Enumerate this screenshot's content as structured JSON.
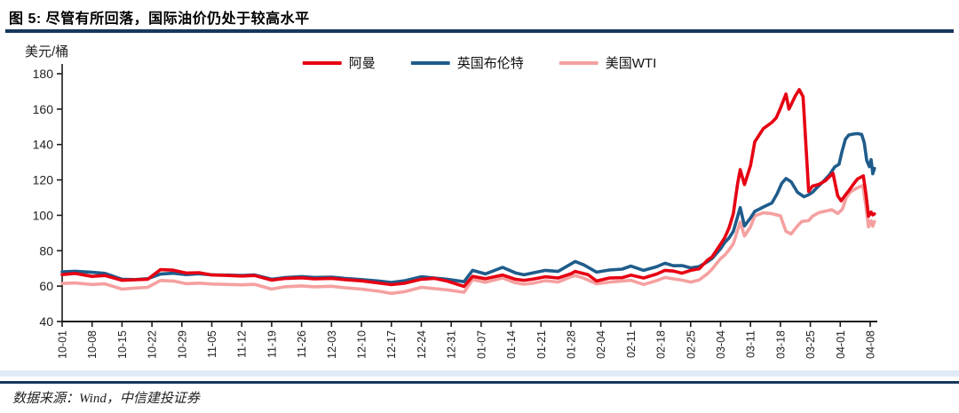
{
  "figure": {
    "title": "图 5: 尽管有所回落，国际油价仍处于较高水平",
    "y_unit": "美元/桶",
    "source": "数据来源：Wind，中信建投证券"
  },
  "colors": {
    "oman": "#e60012",
    "brent": "#1f5c8b",
    "wti": "#f5a0a0",
    "title_rule": "#17375e",
    "axis": "#1a1a1a",
    "tick_text": "#222222"
  },
  "chart_data": {
    "type": "line",
    "title": "图 5: 尽管有所回落，国际油价仍处于较高水平",
    "ylabel": "美元/桶",
    "xlabel": "",
    "ylim": [
      40,
      180
    ],
    "y_ticks": [
      40,
      60,
      80,
      100,
      120,
      140,
      160,
      180
    ],
    "x_tick_labels": [
      "10-01",
      "10-08",
      "10-15",
      "10-22",
      "10-29",
      "11-05",
      "11-12",
      "11-19",
      "11-26",
      "12-03",
      "12-10",
      "12-17",
      "12-24",
      "12-31",
      "01-07",
      "01-14",
      "01-21",
      "01-28",
      "02-04",
      "02-11",
      "02-18",
      "02-25",
      "03-04",
      "03-11",
      "03-18",
      "03-25",
      "04-01",
      "04-08"
    ],
    "x_units": "day offset from 10-01 (weekly ticks every 7 days, 04-08 = day 189)",
    "grid": false,
    "legend_position": "top",
    "series": [
      {
        "name": "阿曼",
        "color_key": "oman",
        "points": [
          [
            0,
            66.5
          ],
          [
            3,
            67.2
          ],
          [
            7,
            65.5
          ],
          [
            10,
            66.0
          ],
          [
            14,
            63.3
          ],
          [
            17,
            63.6
          ],
          [
            20,
            63.9
          ],
          [
            23,
            69.3
          ],
          [
            26,
            69.0
          ],
          [
            29,
            67.4
          ],
          [
            32,
            67.6
          ],
          [
            35,
            66.3
          ],
          [
            39,
            66.0
          ],
          [
            42,
            65.7
          ],
          [
            45,
            66.0
          ],
          [
            49,
            63.4
          ],
          [
            52,
            64.3
          ],
          [
            56,
            64.7
          ],
          [
            59,
            64.1
          ],
          [
            63,
            64.4
          ],
          [
            66,
            63.7
          ],
          [
            70,
            63.0
          ],
          [
            74,
            61.8
          ],
          [
            77,
            60.8
          ],
          [
            80,
            61.6
          ],
          [
            84,
            63.9
          ],
          [
            87,
            64.4
          ],
          [
            90,
            62.9
          ],
          [
            94,
            59.8
          ],
          [
            96,
            65.5
          ],
          [
            99,
            64.2
          ],
          [
            103,
            66.3
          ],
          [
            106,
            63.9
          ],
          [
            108,
            63.3
          ],
          [
            110,
            63.9
          ],
          [
            113,
            65.3
          ],
          [
            116,
            64.6
          ],
          [
            119,
            67.0
          ],
          [
            120,
            68.3
          ],
          [
            123,
            66.5
          ],
          [
            125,
            62.9
          ],
          [
            128,
            64.6
          ],
          [
            131,
            64.8
          ],
          [
            133,
            66.2
          ],
          [
            136,
            64.6
          ],
          [
            139,
            66.8
          ],
          [
            141,
            68.9
          ],
          [
            143,
            68.5
          ],
          [
            145,
            67.3
          ],
          [
            147,
            68.9
          ],
          [
            149,
            69.8
          ],
          [
            151,
            74.8
          ],
          [
            152,
            76.5
          ],
          [
            154,
            83.7
          ],
          [
            155,
            87.5
          ],
          [
            156,
            93.0
          ],
          [
            157,
            101.0
          ],
          [
            158,
            118.0
          ],
          [
            158.6,
            125.8
          ],
          [
            159.6,
            117.4
          ],
          [
            161,
            128.0
          ],
          [
            162,
            141.5
          ],
          [
            164,
            149.0
          ],
          [
            166,
            152.5
          ],
          [
            167,
            155.0
          ],
          [
            168,
            160.5
          ],
          [
            169.3,
            168.5
          ],
          [
            170,
            160.0
          ],
          [
            171.5,
            167.5
          ],
          [
            172.4,
            171.0
          ],
          [
            173.3,
            167.0
          ],
          [
            174,
            138.0
          ],
          [
            174.6,
            113.5
          ],
          [
            175.5,
            116.5
          ],
          [
            177,
            117.5
          ],
          [
            178.5,
            119.5
          ],
          [
            180.3,
            123.8
          ],
          [
            181.4,
            111.0
          ],
          [
            182.2,
            108.2
          ],
          [
            183.2,
            111.5
          ],
          [
            184,
            113.9
          ],
          [
            185.2,
            118.0
          ],
          [
            186,
            120.5
          ],
          [
            187.4,
            122.3
          ],
          [
            188,
            112.0
          ],
          [
            188.6,
            99.5
          ],
          [
            189.2,
            101.8
          ],
          [
            189.6,
            100.2
          ],
          [
            190,
            100.8
          ]
        ]
      },
      {
        "name": "英国布伦特",
        "color_key": "brent",
        "points": [
          [
            0,
            68.1
          ],
          [
            3,
            68.4
          ],
          [
            7,
            67.8
          ],
          [
            10,
            67.2
          ],
          [
            14,
            63.9
          ],
          [
            17,
            63.7
          ],
          [
            20,
            64.2
          ],
          [
            23,
            66.8
          ],
          [
            26,
            67.3
          ],
          [
            29,
            66.5
          ],
          [
            32,
            67.0
          ],
          [
            35,
            66.4
          ],
          [
            39,
            66.2
          ],
          [
            42,
            66.0
          ],
          [
            45,
            66.3
          ],
          [
            49,
            63.9
          ],
          [
            52,
            64.8
          ],
          [
            56,
            65.4
          ],
          [
            59,
            64.9
          ],
          [
            63,
            65.1
          ],
          [
            66,
            64.4
          ],
          [
            70,
            63.7
          ],
          [
            74,
            62.9
          ],
          [
            77,
            62.1
          ],
          [
            80,
            63.0
          ],
          [
            84,
            65.3
          ],
          [
            87,
            64.6
          ],
          [
            90,
            63.9
          ],
          [
            94,
            62.5
          ],
          [
            96,
            68.9
          ],
          [
            99,
            66.9
          ],
          [
            103,
            70.6
          ],
          [
            106,
            67.5
          ],
          [
            108,
            66.4
          ],
          [
            110,
            67.4
          ],
          [
            113,
            68.9
          ],
          [
            116,
            68.3
          ],
          [
            119,
            72.5
          ],
          [
            120,
            73.9
          ],
          [
            122,
            72.0
          ],
          [
            125,
            67.9
          ],
          [
            128,
            69.1
          ],
          [
            131,
            69.6
          ],
          [
            133,
            71.3
          ],
          [
            136,
            68.9
          ],
          [
            139,
            70.9
          ],
          [
            141,
            72.9
          ],
          [
            143,
            71.5
          ],
          [
            145,
            71.6
          ],
          [
            147,
            70.3
          ],
          [
            149,
            71.0
          ],
          [
            151,
            73.9
          ],
          [
            152,
            75.6
          ],
          [
            154,
            81.1
          ],
          [
            155,
            84.7
          ],
          [
            156,
            87.2
          ],
          [
            157,
            91.0
          ],
          [
            158.6,
            104.4
          ],
          [
            159.6,
            94.0
          ],
          [
            161,
            98.5
          ],
          [
            162,
            102.2
          ],
          [
            164,
            104.7
          ],
          [
            166,
            107.0
          ],
          [
            167.2,
            112.0
          ],
          [
            168.3,
            118.0
          ],
          [
            169.3,
            120.8
          ],
          [
            170.5,
            119.0
          ],
          [
            172,
            113.0
          ],
          [
            173.5,
            110.5
          ],
          [
            174.5,
            111.5
          ],
          [
            175.5,
            113.0
          ],
          [
            176.5,
            115.5
          ],
          [
            178,
            119.0
          ],
          [
            179.5,
            123.0
          ],
          [
            180.7,
            127.3
          ],
          [
            181.7,
            128.8
          ],
          [
            182.4,
            136.0
          ],
          [
            183.2,
            143.0
          ],
          [
            184,
            145.4
          ],
          [
            185,
            145.9
          ],
          [
            186,
            146.2
          ],
          [
            187,
            145.7
          ],
          [
            187.6,
            141.0
          ],
          [
            188.2,
            131.0
          ],
          [
            188.8,
            127.5
          ],
          [
            189.2,
            131.5
          ],
          [
            189.6,
            123.5
          ],
          [
            190,
            126.5
          ]
        ]
      },
      {
        "name": "美国WTI",
        "color_key": "wti",
        "points": [
          [
            0,
            61.5
          ],
          [
            3,
            61.8
          ],
          [
            7,
            60.9
          ],
          [
            10,
            61.3
          ],
          [
            14,
            58.3
          ],
          [
            17,
            58.9
          ],
          [
            20,
            59.3
          ],
          [
            23,
            63.2
          ],
          [
            26,
            62.9
          ],
          [
            29,
            61.4
          ],
          [
            32,
            61.7
          ],
          [
            35,
            61.2
          ],
          [
            39,
            60.9
          ],
          [
            42,
            60.7
          ],
          [
            45,
            61.0
          ],
          [
            49,
            58.3
          ],
          [
            52,
            59.6
          ],
          [
            56,
            60.1
          ],
          [
            59,
            59.6
          ],
          [
            63,
            59.9
          ],
          [
            66,
            59.1
          ],
          [
            70,
            58.3
          ],
          [
            74,
            57.1
          ],
          [
            77,
            55.9
          ],
          [
            80,
            56.8
          ],
          [
            84,
            59.3
          ],
          [
            87,
            58.6
          ],
          [
            90,
            57.9
          ],
          [
            94,
            56.5
          ],
          [
            96,
            63.7
          ],
          [
            99,
            62.2
          ],
          [
            103,
            64.6
          ],
          [
            106,
            61.9
          ],
          [
            108,
            61.1
          ],
          [
            110,
            61.6
          ],
          [
            113,
            63.1
          ],
          [
            116,
            62.3
          ],
          [
            119,
            65.3
          ],
          [
            120,
            66.0
          ],
          [
            122,
            64.5
          ],
          [
            125,
            61.3
          ],
          [
            128,
            62.3
          ],
          [
            131,
            62.9
          ],
          [
            133,
            63.3
          ],
          [
            136,
            60.9
          ],
          [
            139,
            63.1
          ],
          [
            141,
            64.9
          ],
          [
            143,
            64.1
          ],
          [
            145,
            63.4
          ],
          [
            147,
            62.3
          ],
          [
            149,
            63.5
          ],
          [
            151,
            67.1
          ],
          [
            152,
            69.6
          ],
          [
            154,
            75.6
          ],
          [
            155,
            77.6
          ],
          [
            156,
            80.5
          ],
          [
            157,
            84.0
          ],
          [
            158.6,
            96.2
          ],
          [
            159.6,
            88.3
          ],
          [
            161,
            93.5
          ],
          [
            162,
            99.7
          ],
          [
            164,
            101.4
          ],
          [
            166,
            100.9
          ],
          [
            168,
            99.7
          ],
          [
            169.3,
            91.0
          ],
          [
            170.5,
            89.5
          ],
          [
            172,
            94.0
          ],
          [
            173,
            96.5
          ],
          [
            174.6,
            97.0
          ],
          [
            175.5,
            99.5
          ],
          [
            177,
            101.5
          ],
          [
            178.5,
            102.3
          ],
          [
            180,
            103.2
          ],
          [
            181.4,
            101.0
          ],
          [
            182.5,
            103.5
          ],
          [
            183.4,
            110.0
          ],
          [
            184.5,
            113.5
          ],
          [
            186,
            115.5
          ],
          [
            187.3,
            116.8
          ],
          [
            188,
            105.0
          ],
          [
            188.6,
            93.5
          ],
          [
            189.2,
            97.0
          ],
          [
            189.6,
            93.8
          ],
          [
            190,
            96.5
          ]
        ]
      }
    ]
  }
}
